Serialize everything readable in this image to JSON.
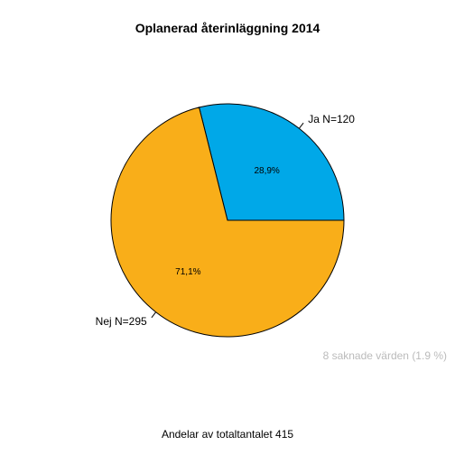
{
  "chart_data": {
    "type": "pie",
    "title": "Oplanerad återinläggning  2014",
    "xlabel": "Andelar av totaltantalet 415",
    "note": "8 saknade värden (1.9 %)",
    "slices": [
      {
        "label": "Ja N=120",
        "value": 120,
        "percent_label": "28,9%",
        "color": "#00a8e8"
      },
      {
        "label": "Nej N=295",
        "value": 295,
        "percent_label": "71,1%",
        "color": "#f9ae19"
      }
    ],
    "total": 415,
    "start_angle_deg": 0,
    "direction": "counterclockwise"
  }
}
